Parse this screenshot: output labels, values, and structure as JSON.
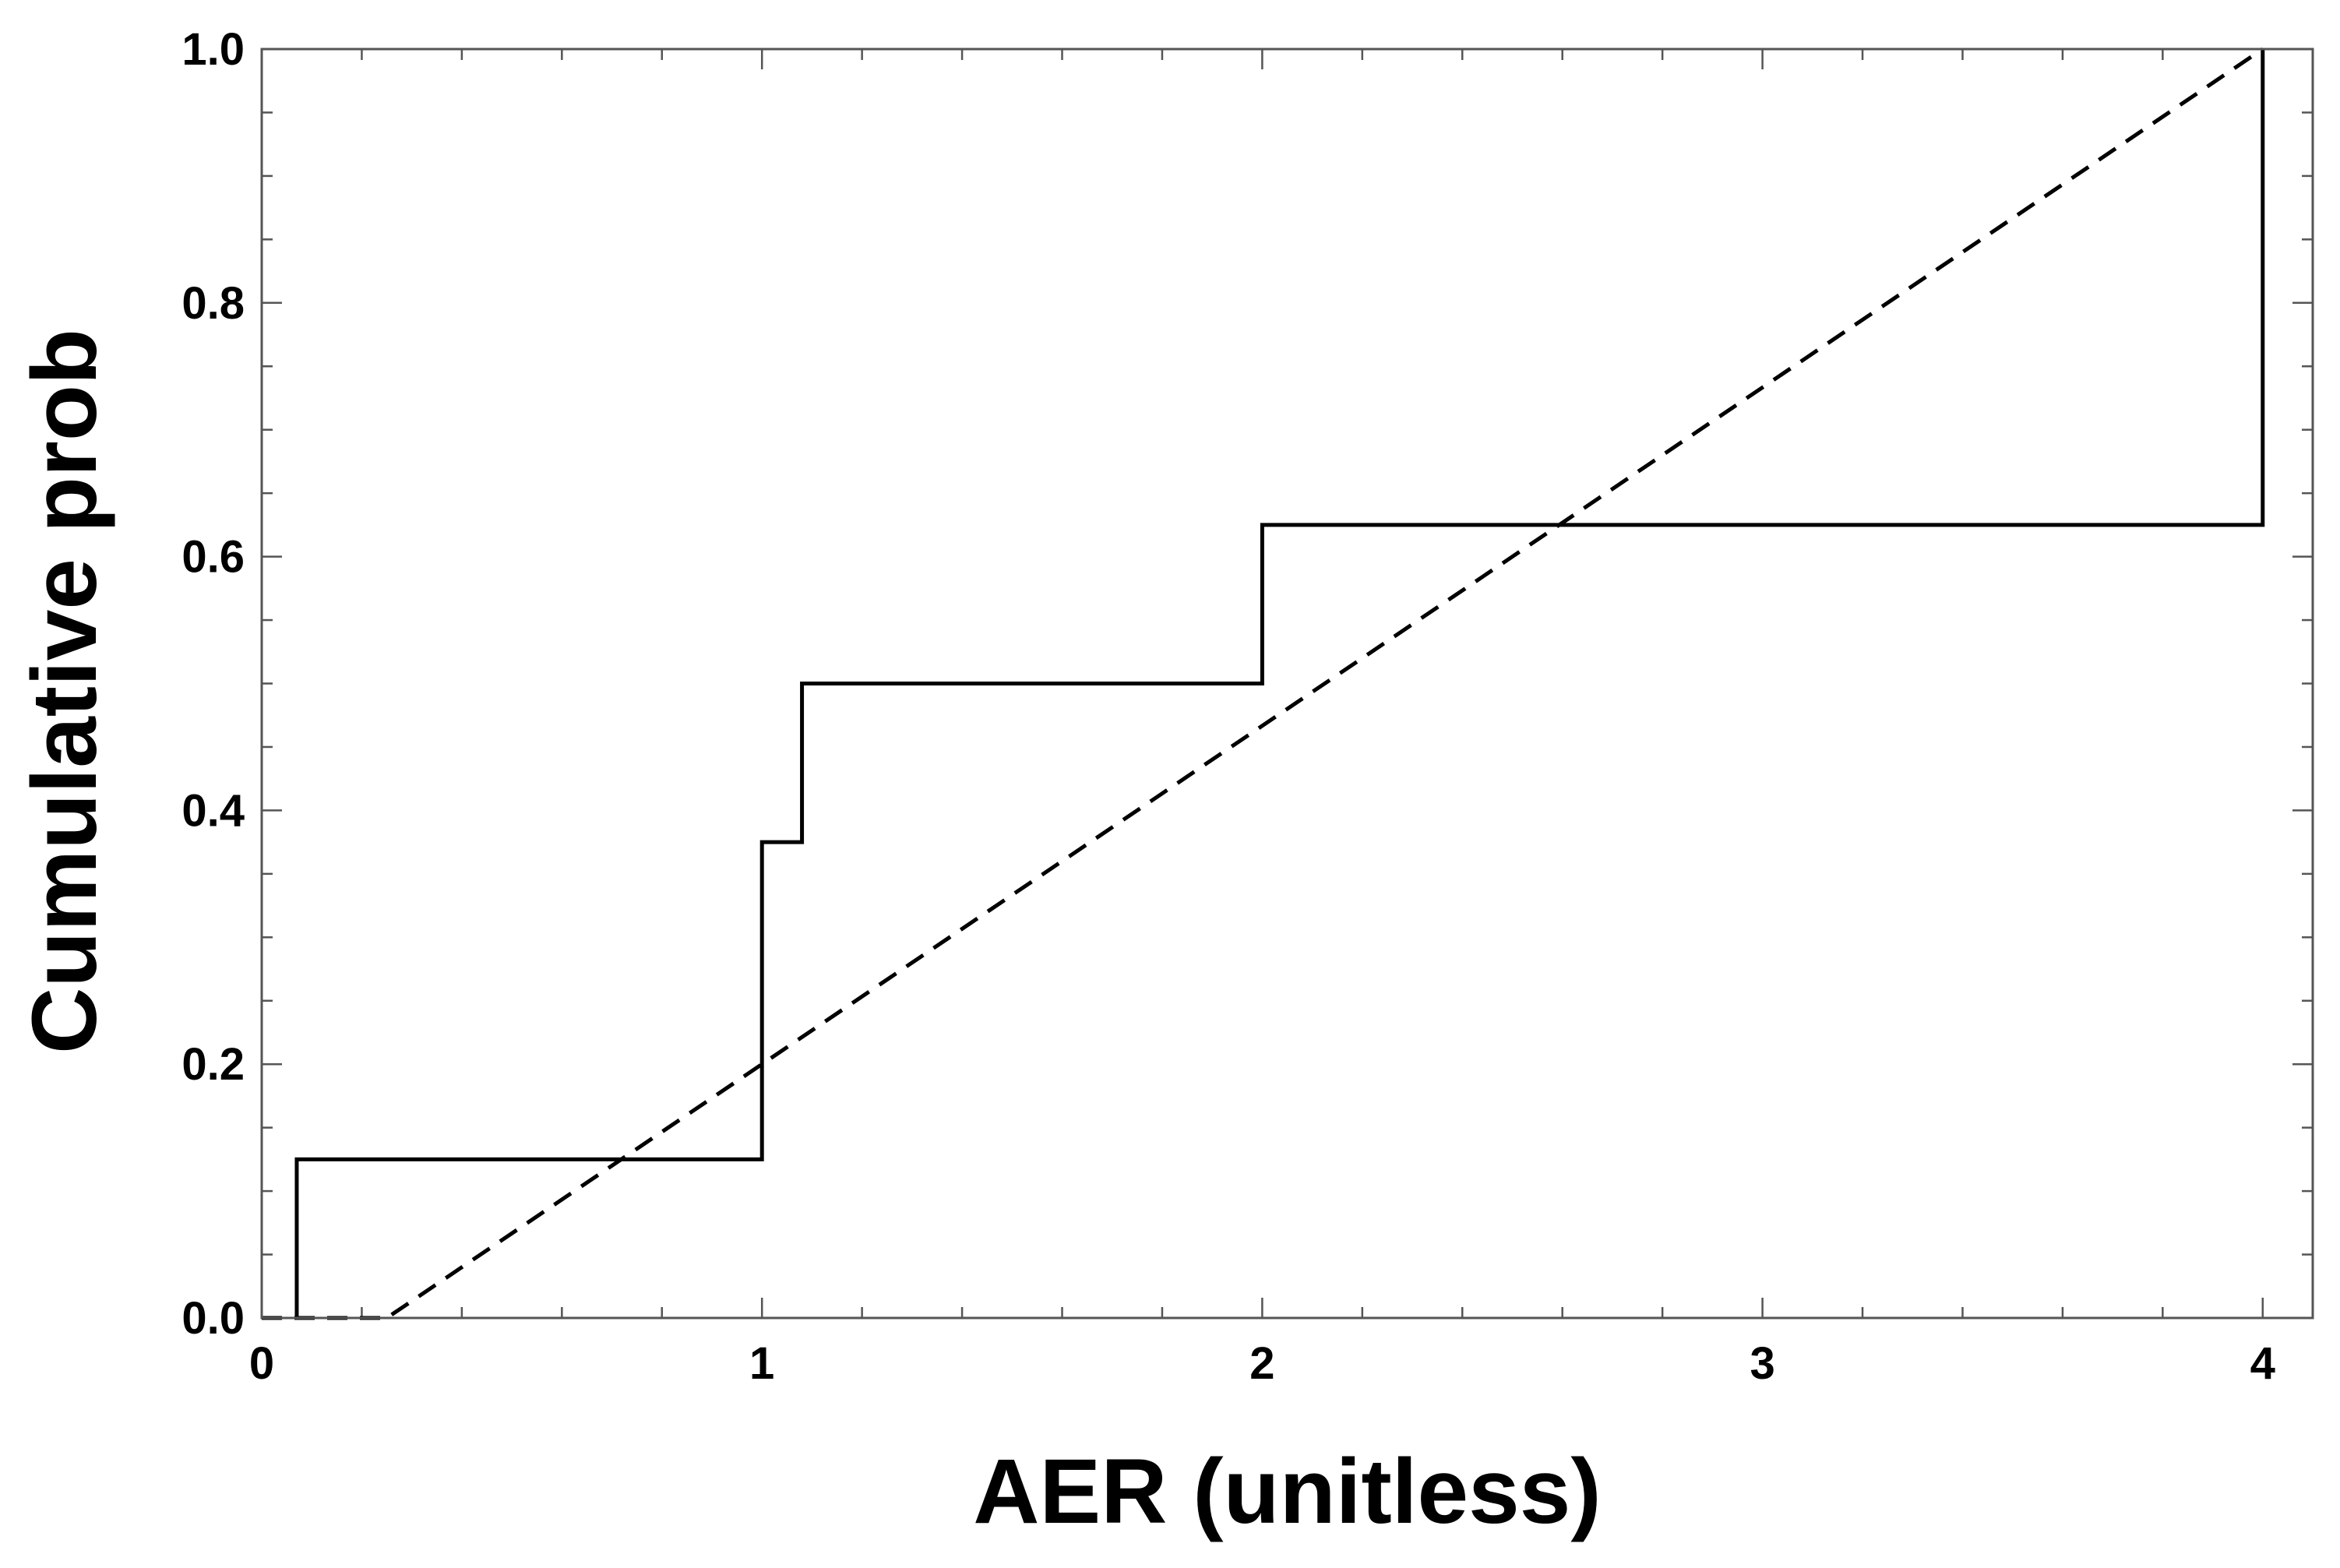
{
  "chart_data": {
    "type": "line",
    "title": "",
    "xlabel": "AER (unitless)",
    "ylabel": "Cumulative prob",
    "xlim": [
      0,
      4.1
    ],
    "ylim": [
      0,
      1.0
    ],
    "x_ticks": [
      0,
      1,
      2,
      3,
      4
    ],
    "x_tick_labels": [
      "0",
      "1",
      "2",
      "3",
      "4"
    ],
    "y_ticks": [
      0.0,
      0.2,
      0.4,
      0.6,
      0.8,
      1.0
    ],
    "y_tick_labels": [
      "0.0",
      "0.2",
      "0.4",
      "0.6",
      "0.8",
      "1.0"
    ],
    "x_minor_step": 0.2,
    "y_minor_step": 0.05,
    "grid": false,
    "legend": "none",
    "series": [
      {
        "style": "step",
        "color": "#000000",
        "dash": "solid",
        "x": [
          0.07,
          0.07,
          1.0,
          1.0,
          1.08,
          1.08,
          2.0,
          2.0,
          4.0,
          4.0
        ],
        "y": [
          0.0,
          0.125,
          0.125,
          0.375,
          0.375,
          0.5,
          0.5,
          0.625,
          0.625,
          1.0
        ]
      },
      {
        "style": "line",
        "color": "#000000",
        "dash": "dashed",
        "x": [
          0.0,
          0.25,
          4.0
        ],
        "y": [
          0.0,
          0.0,
          1.0
        ]
      }
    ]
  }
}
